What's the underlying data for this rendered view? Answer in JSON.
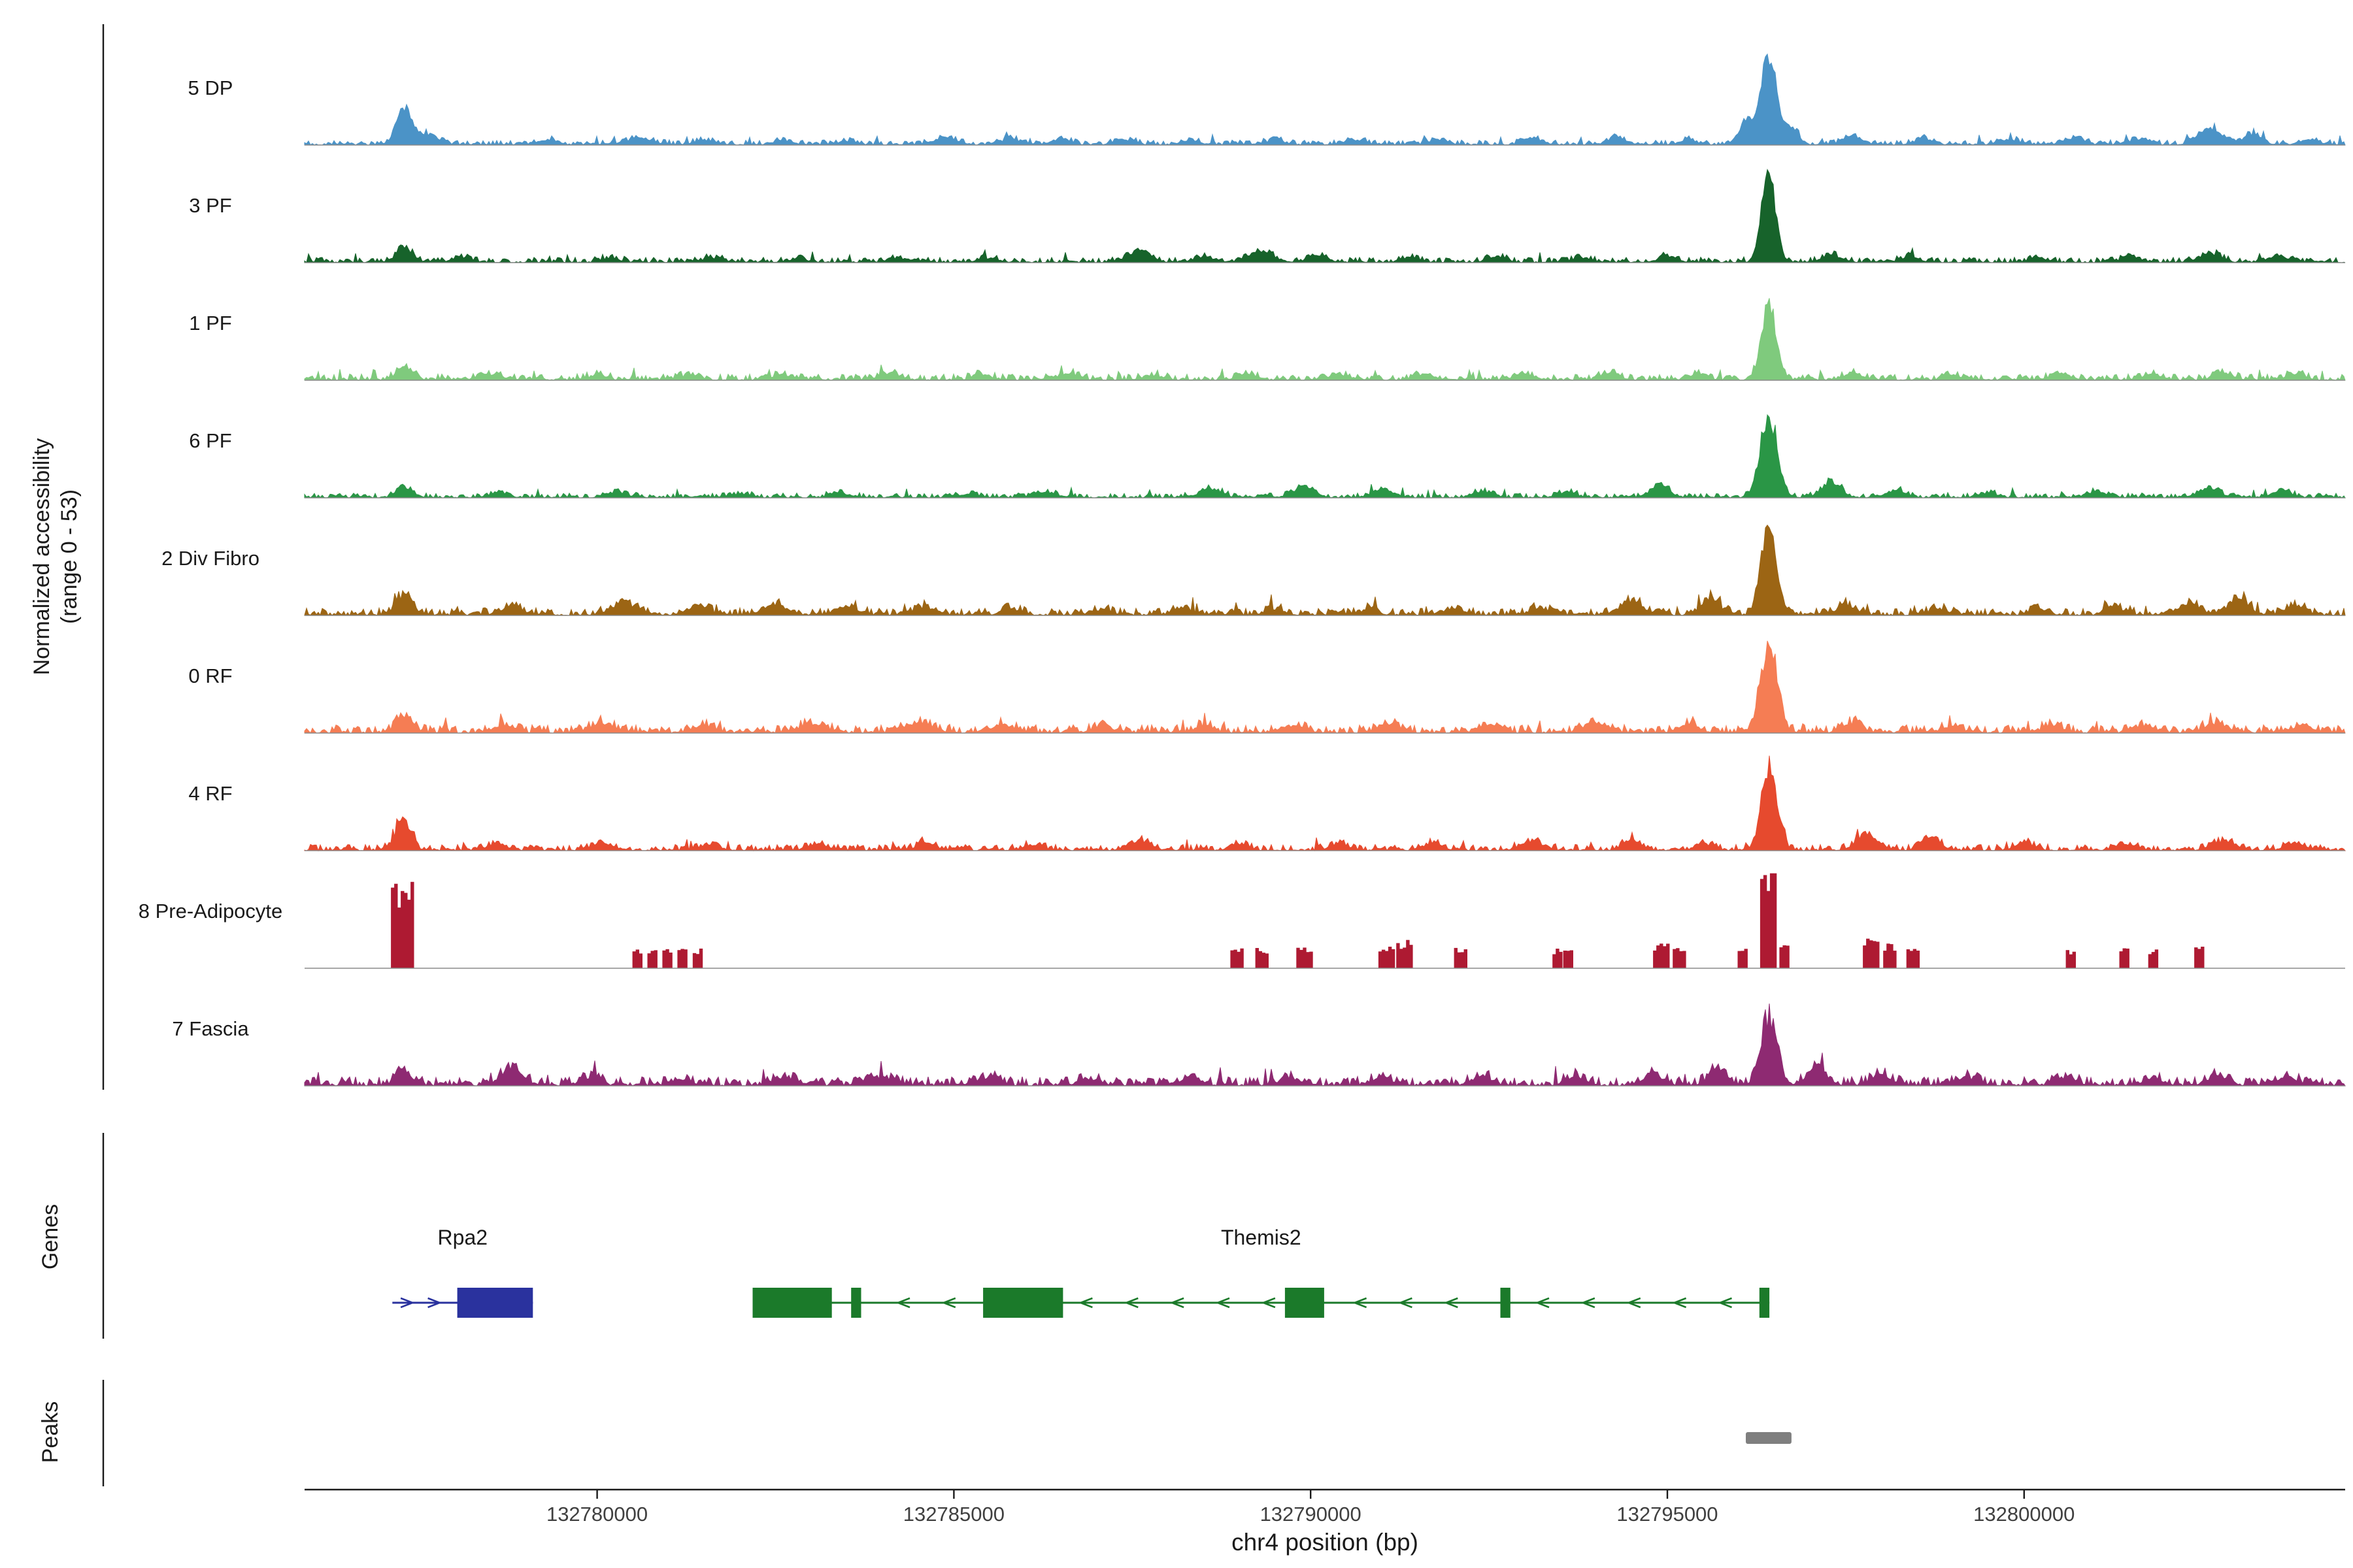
{
  "region": {
    "chromosome": "chr4",
    "start": 132775900,
    "end": 132804500
  },
  "y_axis": {
    "label_line1": "Normalized accessibility",
    "label_line2": "(range 0 - 53)",
    "range_min": 0,
    "range_max": 53
  },
  "sections": {
    "genes_label": "Genes",
    "peaks_label": "Peaks"
  },
  "x_axis": {
    "title": "chr4 position (bp)",
    "ticks": [
      {
        "pos": 132780000,
        "label": "132780000"
      },
      {
        "pos": 132785000,
        "label": "132785000"
      },
      {
        "pos": 132790000,
        "label": "132790000"
      },
      {
        "pos": 132795000,
        "label": "132795000"
      },
      {
        "pos": 132800000,
        "label": "132800000"
      }
    ]
  },
  "chart_data": {
    "type": "area",
    "subtype": "genome-coverage-tracks",
    "xlabel": "chr4 position (bp)",
    "ylabel": "Normalized accessibility (range 0 - 53)",
    "x_range": [
      132775900,
      132804500
    ],
    "track_y_range": [
      0,
      53
    ],
    "tracks": [
      {
        "name": "5 DP",
        "color": "#4b93c7",
        "style": "spiky",
        "noise_floor": 1.2,
        "peaks": [
          [
            132777300,
            20,
            260
          ],
          [
            132777650,
            6,
            300
          ],
          [
            132779300,
            3,
            300
          ],
          [
            132780600,
            4,
            400
          ],
          [
            132781500,
            2.5,
            300
          ],
          [
            132782600,
            2.5,
            300
          ],
          [
            132783500,
            2,
            300
          ],
          [
            132784900,
            4,
            350
          ],
          [
            132785800,
            3,
            300
          ],
          [
            132786500,
            3.5,
            300
          ],
          [
            132787400,
            3,
            300
          ],
          [
            132788300,
            2.5,
            300
          ],
          [
            132789500,
            2.5,
            300
          ],
          [
            132790600,
            3,
            300
          ],
          [
            132791800,
            2.5,
            300
          ],
          [
            132793100,
            4,
            300
          ],
          [
            132794300,
            4,
            300
          ],
          [
            132795300,
            3,
            250
          ],
          [
            132796100,
            14,
            200
          ],
          [
            132796420,
            53,
            260
          ],
          [
            132796750,
            10,
            200
          ],
          [
            132797600,
            5,
            300
          ],
          [
            132798600,
            3,
            300
          ],
          [
            132799800,
            3,
            300
          ],
          [
            132800700,
            4,
            300
          ],
          [
            132801600,
            3,
            300
          ],
          [
            132802600,
            10,
            350
          ],
          [
            132803200,
            6,
            300
          ],
          [
            132804000,
            3,
            300
          ]
        ]
      },
      {
        "name": "3 PF",
        "color": "#17632b",
        "style": "spiky",
        "noise_floor": 1.3,
        "peaks": [
          [
            132777300,
            9,
            250
          ],
          [
            132778100,
            3,
            300
          ],
          [
            132780200,
            2,
            300
          ],
          [
            132781600,
            2.5,
            300
          ],
          [
            132782800,
            2,
            300
          ],
          [
            132784200,
            2.5,
            300
          ],
          [
            132785500,
            2,
            300
          ],
          [
            132787600,
            7,
            350
          ],
          [
            132788500,
            3,
            300
          ],
          [
            132789300,
            6,
            400
          ],
          [
            132790100,
            4,
            300
          ],
          [
            132791400,
            2.5,
            300
          ],
          [
            132792600,
            3,
            300
          ],
          [
            132793800,
            2.5,
            300
          ],
          [
            132795000,
            3.5,
            300
          ],
          [
            132796420,
            50,
            230
          ],
          [
            132797300,
            4,
            300
          ],
          [
            132798400,
            3,
            300
          ],
          [
            132800200,
            2.5,
            300
          ],
          [
            132801500,
            3,
            300
          ],
          [
            132802600,
            5,
            350
          ],
          [
            132803600,
            3,
            300
          ]
        ]
      },
      {
        "name": "1 PF",
        "color": "#7fca7d",
        "style": "spiky",
        "noise_floor": 1.5,
        "peaks": [
          [
            132777300,
            8,
            250
          ],
          [
            132778500,
            3,
            300
          ],
          [
            132780000,
            2.5,
            300
          ],
          [
            132781300,
            3,
            300
          ],
          [
            132782600,
            2.5,
            300
          ],
          [
            132784100,
            3.5,
            350
          ],
          [
            132785400,
            3,
            300
          ],
          [
            132786600,
            3.5,
            300
          ],
          [
            132787800,
            2.5,
            300
          ],
          [
            132789100,
            3.5,
            300
          ],
          [
            132790400,
            3,
            300
          ],
          [
            132791600,
            3.5,
            300
          ],
          [
            132793000,
            3,
            300
          ],
          [
            132794200,
            4,
            300
          ],
          [
            132795400,
            3,
            250
          ],
          [
            132796420,
            45,
            240
          ],
          [
            132797600,
            4,
            300
          ],
          [
            132799000,
            2.5,
            300
          ],
          [
            132800500,
            3.5,
            300
          ],
          [
            132801800,
            3,
            300
          ],
          [
            132802800,
            4,
            300
          ],
          [
            132803800,
            3,
            300
          ]
        ]
      },
      {
        "name": "6 PF",
        "color": "#2a9646",
        "style": "spiky",
        "noise_floor": 1.2,
        "peaks": [
          [
            132777300,
            6,
            250
          ],
          [
            132778600,
            2,
            300
          ],
          [
            132780300,
            2.5,
            300
          ],
          [
            132782000,
            2,
            300
          ],
          [
            132783400,
            2.5,
            300
          ],
          [
            132785200,
            2,
            300
          ],
          [
            132786300,
            3,
            300
          ],
          [
            132788600,
            5,
            350
          ],
          [
            132789900,
            6,
            350
          ],
          [
            132791000,
            5,
            300
          ],
          [
            132792400,
            3.5,
            300
          ],
          [
            132793600,
            3,
            300
          ],
          [
            132794900,
            7,
            300
          ],
          [
            132796420,
            48,
            280
          ],
          [
            132797300,
            9,
            300
          ],
          [
            132798200,
            4,
            300
          ],
          [
            132799500,
            2.5,
            300
          ],
          [
            132801000,
            3,
            300
          ],
          [
            132802600,
            5,
            350
          ],
          [
            132803600,
            4,
            300
          ]
        ]
      },
      {
        "name": "2 Div Fibro",
        "color": "#9c6514",
        "style": "spiky",
        "noise_floor": 1.8,
        "peaks": [
          [
            132777300,
            12,
            260
          ],
          [
            132778800,
            5,
            350
          ],
          [
            132780400,
            6,
            450
          ],
          [
            132781400,
            5,
            350
          ],
          [
            132782500,
            6,
            400
          ],
          [
            132783500,
            5,
            350
          ],
          [
            132784600,
            4.5,
            350
          ],
          [
            132785800,
            3.5,
            300
          ],
          [
            132787100,
            3,
            300
          ],
          [
            132788200,
            3.5,
            300
          ],
          [
            132789500,
            3.5,
            300
          ],
          [
            132790800,
            3,
            300
          ],
          [
            132792000,
            3.5,
            300
          ],
          [
            132793200,
            4,
            300
          ],
          [
            132794500,
            8,
            350
          ],
          [
            132795600,
            10,
            300
          ],
          [
            132796420,
            52,
            250
          ],
          [
            132797500,
            5,
            300
          ],
          [
            132798800,
            3.5,
            300
          ],
          [
            132800200,
            3.5,
            300
          ],
          [
            132801300,
            4,
            300
          ],
          [
            132802300,
            7,
            350
          ],
          [
            132803000,
            9,
            350
          ],
          [
            132803800,
            5,
            300
          ]
        ]
      },
      {
        "name": "0 RF",
        "color": "#f57d54",
        "style": "spiky",
        "noise_floor": 2.0,
        "peaks": [
          [
            132777300,
            10,
            260
          ],
          [
            132778700,
            4,
            350
          ],
          [
            132780100,
            4.5,
            400
          ],
          [
            132781500,
            4,
            350
          ],
          [
            132783000,
            4.5,
            400
          ],
          [
            132784500,
            5.5,
            400
          ],
          [
            132785700,
            4.5,
            350
          ],
          [
            132787100,
            3.5,
            300
          ],
          [
            132788500,
            4,
            300
          ],
          [
            132789800,
            4,
            300
          ],
          [
            132791100,
            5,
            350
          ],
          [
            132792500,
            4.5,
            300
          ],
          [
            132794000,
            6,
            350
          ],
          [
            132795300,
            5,
            300
          ],
          [
            132796430,
            53,
            270
          ],
          [
            132797600,
            5.5,
            300
          ],
          [
            132799000,
            4,
            300
          ],
          [
            132800400,
            4.5,
            300
          ],
          [
            132801700,
            4,
            300
          ],
          [
            132802700,
            5.5,
            350
          ],
          [
            132803900,
            4.5,
            300
          ]
        ]
      },
      {
        "name": "4 RF",
        "color": "#e64a2e",
        "style": "spiky",
        "noise_floor": 1.5,
        "peaks": [
          [
            132777280,
            18,
            240
          ],
          [
            132778600,
            3.5,
            300
          ],
          [
            132780100,
            3.5,
            300
          ],
          [
            132781600,
            3,
            300
          ],
          [
            132783100,
            3.5,
            300
          ],
          [
            132784600,
            3.5,
            300
          ],
          [
            132786100,
            3,
            300
          ],
          [
            132787600,
            5.5,
            350
          ],
          [
            132789000,
            3.5,
            300
          ],
          [
            132790400,
            3.5,
            300
          ],
          [
            132791700,
            4,
            300
          ],
          [
            132793100,
            5.5,
            350
          ],
          [
            132794500,
            5,
            300
          ],
          [
            132795500,
            4,
            250
          ],
          [
            132796430,
            52,
            250
          ],
          [
            132797800,
            9,
            350
          ],
          [
            132798700,
            7,
            300
          ],
          [
            132800000,
            4.5,
            300
          ],
          [
            132801400,
            3.5,
            300
          ],
          [
            132802800,
            5.5,
            350
          ],
          [
            132803800,
            4,
            300
          ]
        ]
      },
      {
        "name": "8 Pre-Adipocyte",
        "color": "#ae1a32",
        "style": "blocks",
        "noise_floor": 0,
        "blocks": [
          [
            132777250,
            42,
            280
          ],
          [
            132780560,
            10,
            130
          ],
          [
            132780770,
            10,
            130
          ],
          [
            132780980,
            10,
            130
          ],
          [
            132781190,
            10,
            130
          ],
          [
            132781400,
            10,
            120
          ],
          [
            132788950,
            10,
            150
          ],
          [
            132789300,
            10,
            150
          ],
          [
            132789900,
            10,
            200
          ],
          [
            132791050,
            12,
            200
          ],
          [
            132791300,
            14,
            200
          ],
          [
            132792100,
            10,
            180
          ],
          [
            132793450,
            10,
            120
          ],
          [
            132793600,
            10,
            120
          ],
          [
            132794900,
            12,
            200
          ],
          [
            132795150,
            12,
            150
          ],
          [
            132796050,
            10,
            130
          ],
          [
            132796400,
            48,
            200
          ],
          [
            132796630,
            14,
            120
          ],
          [
            132797850,
            16,
            220
          ],
          [
            132798100,
            12,
            150
          ],
          [
            132798420,
            10,
            140
          ],
          [
            132800650,
            10,
            130
          ],
          [
            132801400,
            10,
            130
          ],
          [
            132801800,
            10,
            120
          ],
          [
            132802450,
            12,
            130
          ]
        ]
      },
      {
        "name": "7 Fascia",
        "color": "#8e2a72",
        "style": "spiky",
        "noise_floor": 2.2,
        "peaks": [
          [
            132777300,
            8,
            250
          ],
          [
            132778800,
            10,
            350
          ],
          [
            132779900,
            4,
            300
          ],
          [
            132781200,
            3.5,
            300
          ],
          [
            132782600,
            4.5,
            350
          ],
          [
            132784000,
            4.5,
            350
          ],
          [
            132785500,
            4.5,
            350
          ],
          [
            132786900,
            3.5,
            300
          ],
          [
            132788300,
            4.5,
            300
          ],
          [
            132789700,
            4.5,
            300
          ],
          [
            132791000,
            5,
            300
          ],
          [
            132792400,
            5.5,
            300
          ],
          [
            132793700,
            5,
            300
          ],
          [
            132794800,
            7,
            300
          ],
          [
            132795700,
            9,
            280
          ],
          [
            132796430,
            40,
            260
          ],
          [
            132797100,
            12,
            280
          ],
          [
            132798000,
            6,
            300
          ],
          [
            132799200,
            4.5,
            300
          ],
          [
            132800600,
            4.5,
            300
          ],
          [
            132801800,
            4,
            300
          ],
          [
            132802700,
            5.5,
            300
          ],
          [
            132803700,
            4.5,
            300
          ]
        ]
      }
    ],
    "genes": [
      {
        "name": "Rpa2",
        "color": "#2a329e",
        "strand": "+",
        "start": 132777130,
        "end": 132779100,
        "exons": [
          [
            132778040,
            132779100
          ]
        ]
      },
      {
        "name": "Themis2",
        "color": "#1b7a2a",
        "strand": "-",
        "start": 132782180,
        "end": 132796430,
        "exons": [
          [
            132782180,
            132783290
          ],
          [
            132783560,
            132783700
          ],
          [
            132785410,
            132786530
          ],
          [
            132789640,
            132790190
          ],
          [
            132792660,
            132792800
          ],
          [
            132796290,
            132796430
          ]
        ]
      }
    ],
    "peak_regions": [
      {
        "start": 132796100,
        "end": 132796740
      }
    ]
  }
}
